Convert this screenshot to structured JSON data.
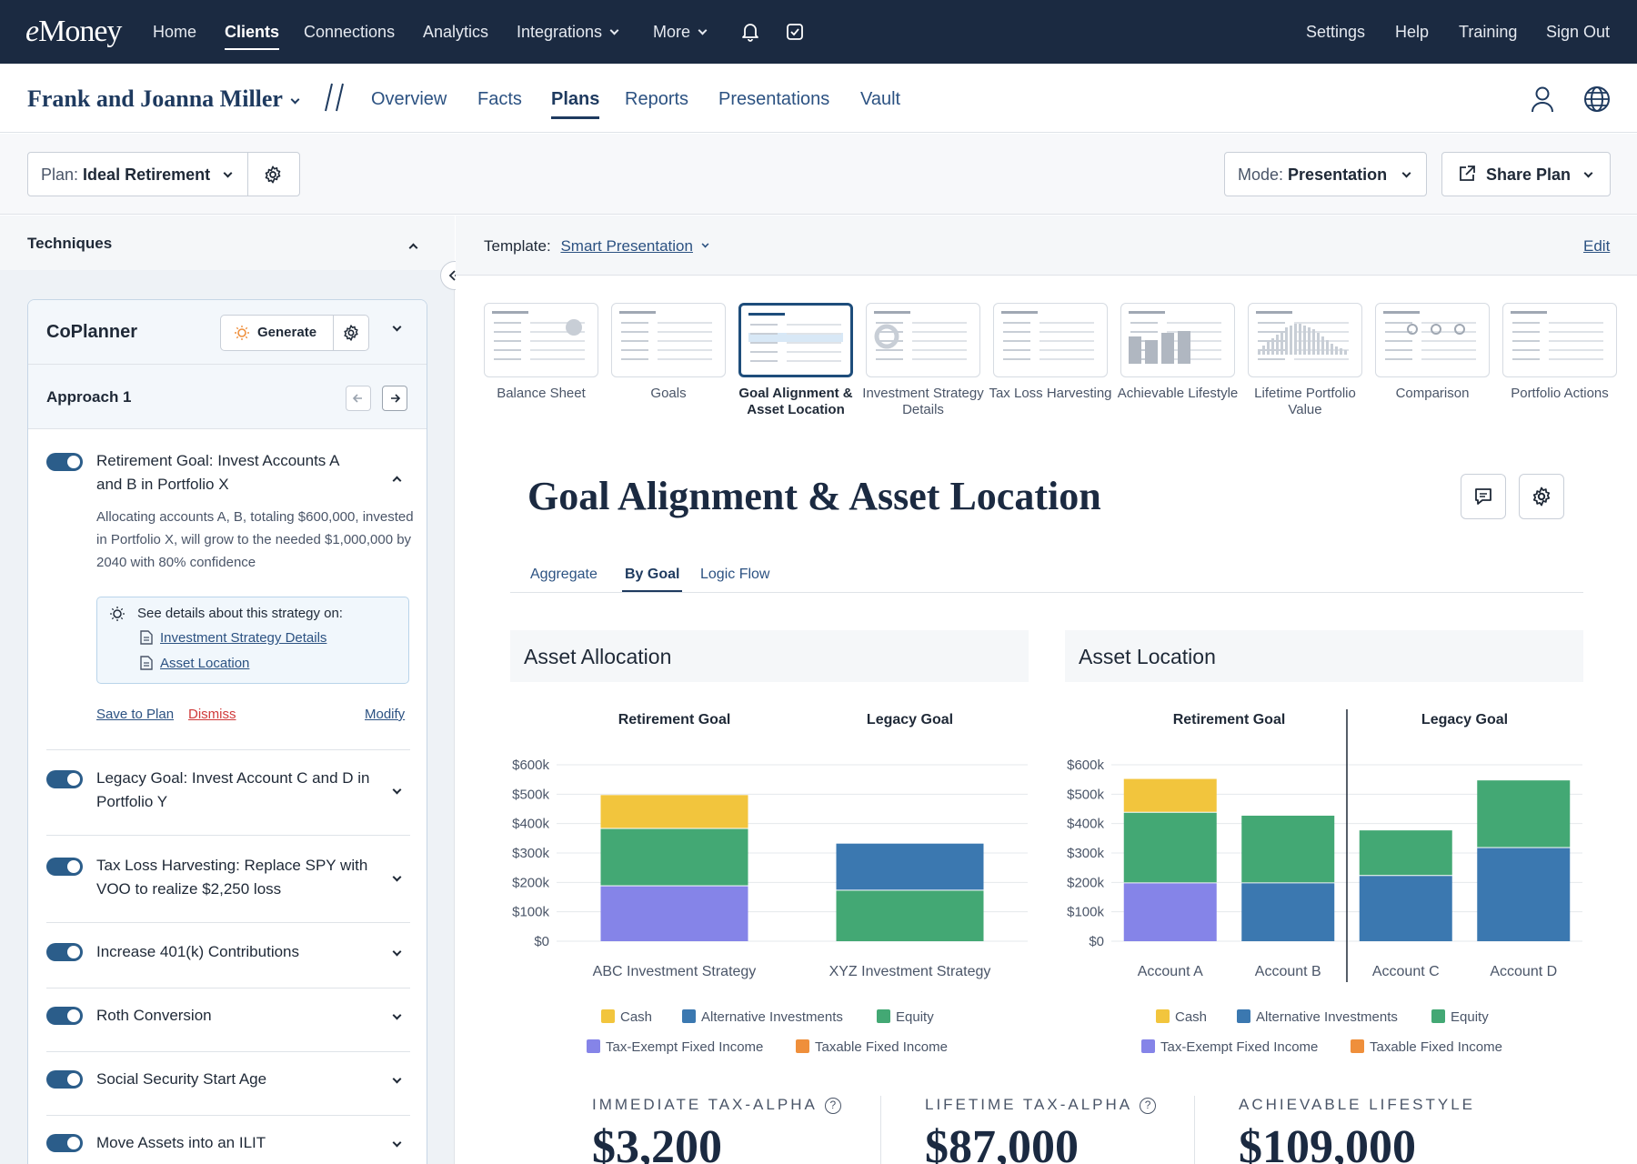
{
  "app": {
    "logo_pre": "e",
    "logo_main": "Money"
  },
  "topnav": {
    "items": [
      "Home",
      "Clients",
      "Connections",
      "Analytics",
      "Integrations",
      "More"
    ],
    "active": "Clients",
    "right": [
      "Settings",
      "Help",
      "Training",
      "Sign Out"
    ],
    "icons": [
      "bell-icon",
      "checkbox-icon"
    ]
  },
  "client": {
    "name": "Frank and Joanna Miller",
    "tabs": [
      "Overview",
      "Facts",
      "Plans",
      "Reports",
      "Presentations",
      "Vault"
    ],
    "active_tab": "Plans",
    "icons": [
      "user-icon",
      "globe-icon"
    ]
  },
  "plan": {
    "label": "Plan:",
    "name": "Ideal Retirement",
    "mode_label": "Mode:",
    "mode_value": "Presentation",
    "share": "Share Plan"
  },
  "techniques": {
    "title": "Techniques"
  },
  "coplanner": {
    "title": "CoPlanner",
    "generate": "Generate",
    "approach": "Approach 1",
    "expanded": {
      "title": "Retirement Goal: Invest Accounts A and B in Portfolio X",
      "desc": "Allocating accounts A, B, totaling $600,000, invested in Portfolio X, will grow to the needed $1,000,000 by 2040 with 80% confidence",
      "details_label": "See details about this strategy on:",
      "links": [
        "Investment Strategy Details",
        "Asset Location"
      ],
      "save": "Save to Plan",
      "dismiss": "Dismiss",
      "modify": "Modify"
    },
    "items": [
      "Legacy Goal: Invest Account C and D in Portfolio Y",
      "Tax Loss Harvesting: Replace SPY with VOO to realize $2,250 loss",
      "Increase 401(k) Contributions",
      "Roth Conversion",
      "Social Security Start Age",
      "Move Assets into an ILIT"
    ]
  },
  "template": {
    "label": "Template:",
    "value": "Smart Presentation",
    "edit": "Edit"
  },
  "thumbnails": [
    "Balance Sheet",
    "Goals",
    "Goal Alignment & Asset Location",
    "Investment Strategy Details",
    "Tax Loss Harvesting",
    "Achievable Lifestyle",
    "Lifetime Portfolio Value",
    "Comparison",
    "Portfolio Actions"
  ],
  "selected_thumbnail": "Goal Alignment & Asset Location",
  "page": {
    "title": "Goal Alignment & Asset Location",
    "subtabs": [
      "Aggregate",
      "By Goal",
      "Logic Flow"
    ],
    "active_subtab": "By Goal"
  },
  "colors": {
    "Cash": "#f2c53d",
    "Alternative Investments": "#3b78b0",
    "Equity": "#43a874",
    "Tax-Exempt Fixed Income": "#8584e8",
    "Taxable Fixed Income": "#ef8f3b"
  },
  "legend": [
    "Cash",
    "Alternative Investments",
    "Equity",
    "Tax-Exempt Fixed Income",
    "Taxable Fixed Income"
  ],
  "chart_data": [
    {
      "type": "bar",
      "stacked": true,
      "title": "Asset Allocation",
      "groups": [
        "Retirement Goal",
        "Legacy Goal"
      ],
      "categories": [
        "ABC Investment Strategy",
        "XYZ Investment Strategy"
      ],
      "yticks": [
        "$0",
        "$100k",
        "$200k",
        "$300k",
        "$400k",
        "$500k",
        "$600k"
      ],
      "ylim": [
        0,
        600000
      ],
      "series": [
        {
          "name": "Tax-Exempt Fixed Income",
          "values": [
            190000,
            0
          ]
        },
        {
          "name": "Equity",
          "values": [
            195000,
            175000
          ]
        },
        {
          "name": "Alternative Investments",
          "values": [
            0,
            160000
          ]
        },
        {
          "name": "Cash",
          "values": [
            115000,
            0
          ]
        }
      ]
    },
    {
      "type": "bar",
      "stacked": true,
      "title": "Asset Location",
      "groups": [
        "Retirement Goal",
        "Legacy Goal"
      ],
      "categories": [
        "Account A",
        "Account B",
        "Account C",
        "Account D"
      ],
      "yticks": [
        "$0",
        "$100k",
        "$200k",
        "$300k",
        "$400k",
        "$500k",
        "$600k"
      ],
      "ylim": [
        0,
        600000
      ],
      "series": [
        {
          "name": "Tax-Exempt Fixed Income",
          "values": [
            200000,
            0,
            0,
            0
          ]
        },
        {
          "name": "Alternative Investments",
          "values": [
            0,
            200000,
            225000,
            320000
          ]
        },
        {
          "name": "Equity",
          "values": [
            240000,
            230000,
            155000,
            230000
          ]
        },
        {
          "name": "Cash",
          "values": [
            115000,
            0,
            0,
            0
          ]
        }
      ]
    }
  ],
  "kpis": [
    {
      "label": "IMMEDIATE TAX-ALPHA",
      "value": "$3,200",
      "help": "?"
    },
    {
      "label": "LIFETIME TAX-ALPHA",
      "value": "$87,000",
      "help": "?"
    },
    {
      "label": "ACHIEVABLE LIFESTYLE",
      "value": "$109,000"
    }
  ]
}
